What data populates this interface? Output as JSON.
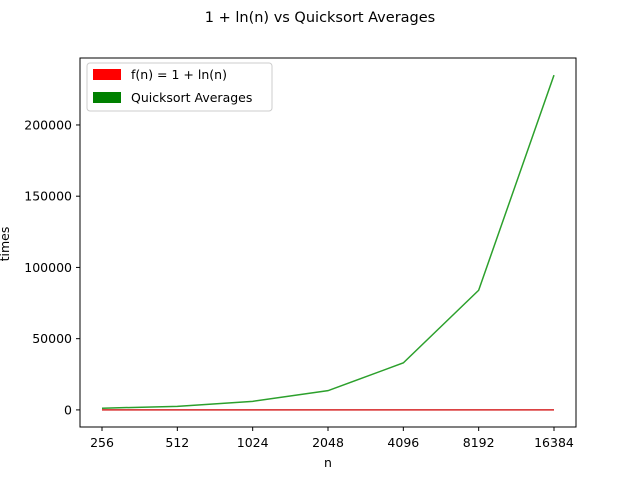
{
  "chart_data": {
    "type": "line",
    "title": "1 + ln(n) vs Quicksort Averages",
    "xlabel": "n",
    "ylabel": "times",
    "categories": [
      "256",
      "512",
      "1024",
      "2048",
      "4096",
      "8192",
      "16384"
    ],
    "ylim": [
      -12000,
      247000
    ],
    "yticks": [
      0,
      50000,
      100000,
      150000,
      200000
    ],
    "ytick_labels": [
      "0",
      "50000",
      "100000",
      "150000",
      "200000"
    ],
    "grid": false,
    "legend_position": "upper-left",
    "legend": [
      {
        "label": "f(n) = 1 + ln(n)",
        "color": "#ff0000"
      },
      {
        "label": "Quicksort Averages",
        "color": "#008000"
      }
    ],
    "series": [
      {
        "name": "f(n) = 1 + ln(n)",
        "color": "#d62728",
        "values": [
          6.55,
          7.24,
          7.93,
          8.62,
          9.32,
          10.01,
          10.7
        ]
      },
      {
        "name": "Quicksort Averages",
        "color": "#2ca02c",
        "values": [
          1200,
          2500,
          6000,
          13500,
          33000,
          84000,
          235000
        ]
      }
    ]
  }
}
